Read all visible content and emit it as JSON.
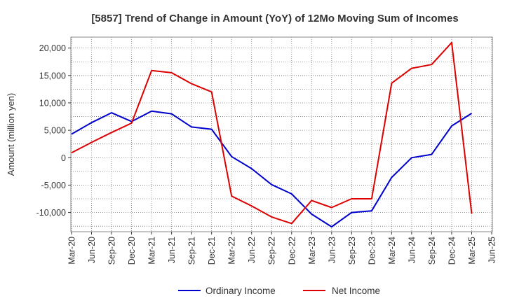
{
  "chart_data": {
    "type": "line",
    "title": "[5857]  Trend of Change in Amount (YoY) of 12Mo Moving Sum of Incomes",
    "ylabel": "Amount (million yen)",
    "xlabel": "",
    "ylim": [
      -13500,
      22000
    ],
    "yticks": [
      -10000,
      -5000,
      0,
      5000,
      10000,
      15000,
      20000
    ],
    "ytick_labels": [
      "-10,000",
      "-5,000",
      "0",
      "5,000",
      "10,000",
      "15,000",
      "20,000"
    ],
    "x": [
      "Mar-20",
      "Jun-20",
      "Sep-20",
      "Dec-20",
      "Mar-21",
      "Jun-21",
      "Sep-21",
      "Dec-21",
      "Mar-22",
      "Jun-22",
      "Sep-22",
      "Dec-22",
      "Mar-23",
      "Jun-23",
      "Sep-23",
      "Dec-23",
      "Mar-24",
      "Jun-24",
      "Sep-24",
      "Dec-24",
      "Mar-25",
      "Jun-25"
    ],
    "grid": true,
    "legend_position": "bottom",
    "series": [
      {
        "name": "Ordinary Income",
        "color": "#0000cc",
        "values": [
          4300,
          6400,
          8200,
          6600,
          8500,
          8000,
          5600,
          5200,
          200,
          -2000,
          -4900,
          -6600,
          -10300,
          -12600,
          -10000,
          -9700,
          -3600,
          0,
          600,
          5800,
          8100,
          null
        ]
      },
      {
        "name": "Net Income",
        "color": "#dd0000",
        "values": [
          900,
          2800,
          4600,
          6300,
          15900,
          15500,
          13500,
          12000,
          -7000,
          -8800,
          -10800,
          -12000,
          -7800,
          -9100,
          -7500,
          -7500,
          13600,
          16300,
          17000,
          21000,
          -10200,
          null
        ]
      }
    ]
  }
}
